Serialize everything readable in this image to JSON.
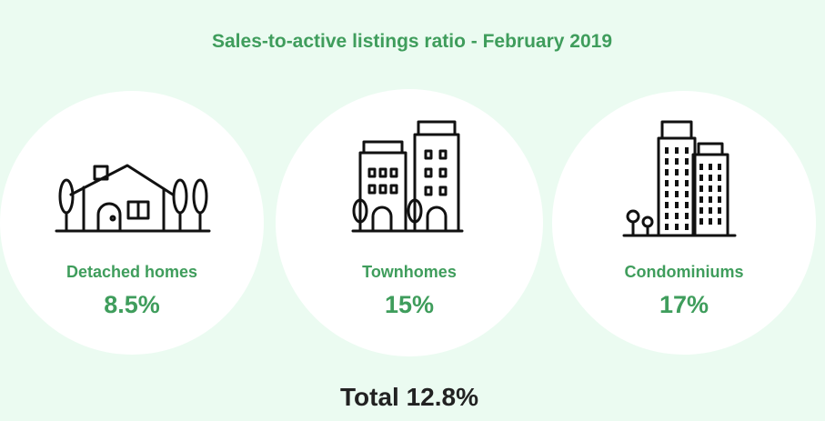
{
  "header": {
    "title": "Sales-to-active listings ratio - February 2019"
  },
  "items": [
    {
      "label": "Detached homes",
      "value": "8.5%"
    },
    {
      "label": "Townhomes",
      "value": "15%"
    },
    {
      "label": "Condominiums",
      "value": "17%"
    }
  ],
  "footer": {
    "total": "Total 12.8%"
  }
}
